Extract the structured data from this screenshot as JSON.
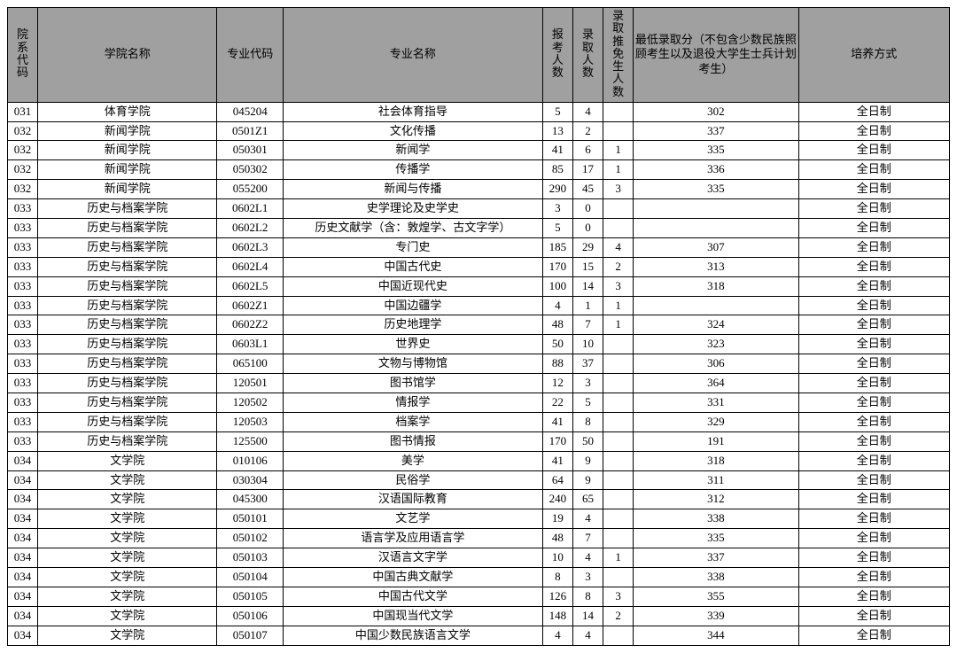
{
  "headers": {
    "dept_code": "院系代码",
    "dept_name": "学院名称",
    "major_code": "专业代码",
    "major_name": "专业名称",
    "applicants": "报考人数",
    "admitted": "录取人数",
    "exempt": "录取推免生人数",
    "min_score": "最低录取分（不包含少数民族照顾考生以及退役大学生士兵计划考生）",
    "mode": "培养方式"
  },
  "rows": [
    {
      "dept_code": "031",
      "dept_name": "体育学院",
      "major_code": "045204",
      "major_name": "社会体育指导",
      "applicants": "5",
      "admitted": "4",
      "exempt": "",
      "min_score": "302",
      "mode": "全日制"
    },
    {
      "dept_code": "032",
      "dept_name": "新闻学院",
      "major_code": "0501Z1",
      "major_name": "文化传播",
      "applicants": "13",
      "admitted": "2",
      "exempt": "",
      "min_score": "337",
      "mode": "全日制"
    },
    {
      "dept_code": "032",
      "dept_name": "新闻学院",
      "major_code": "050301",
      "major_name": "新闻学",
      "applicants": "41",
      "admitted": "6",
      "exempt": "1",
      "min_score": "335",
      "mode": "全日制"
    },
    {
      "dept_code": "032",
      "dept_name": "新闻学院",
      "major_code": "050302",
      "major_name": "传播学",
      "applicants": "85",
      "admitted": "17",
      "exempt": "1",
      "min_score": "336",
      "mode": "全日制"
    },
    {
      "dept_code": "032",
      "dept_name": "新闻学院",
      "major_code": "055200",
      "major_name": "新闻与传播",
      "applicants": "290",
      "admitted": "45",
      "exempt": "3",
      "min_score": "335",
      "mode": "全日制"
    },
    {
      "dept_code": "033",
      "dept_name": "历史与档案学院",
      "major_code": "0602L1",
      "major_name": "史学理论及史学史",
      "applicants": "3",
      "admitted": "0",
      "exempt": "",
      "min_score": "",
      "mode": "全日制"
    },
    {
      "dept_code": "033",
      "dept_name": "历史与档案学院",
      "major_code": "0602L2",
      "major_name": "历史文献学（含：敦煌学、古文字学）",
      "applicants": "5",
      "admitted": "0",
      "exempt": "",
      "min_score": "",
      "mode": "全日制"
    },
    {
      "dept_code": "033",
      "dept_name": "历史与档案学院",
      "major_code": "0602L3",
      "major_name": "专门史",
      "applicants": "185",
      "admitted": "29",
      "exempt": "4",
      "min_score": "307",
      "mode": "全日制"
    },
    {
      "dept_code": "033",
      "dept_name": "历史与档案学院",
      "major_code": "0602L4",
      "major_name": "中国古代史",
      "applicants": "170",
      "admitted": "15",
      "exempt": "2",
      "min_score": "313",
      "mode": "全日制"
    },
    {
      "dept_code": "033",
      "dept_name": "历史与档案学院",
      "major_code": "0602L5",
      "major_name": "中国近现代史",
      "applicants": "100",
      "admitted": "14",
      "exempt": "3",
      "min_score": "318",
      "mode": "全日制"
    },
    {
      "dept_code": "033",
      "dept_name": "历史与档案学院",
      "major_code": "0602Z1",
      "major_name": "中国边疆学",
      "applicants": "4",
      "admitted": "1",
      "exempt": "1",
      "min_score": "",
      "mode": "全日制"
    },
    {
      "dept_code": "033",
      "dept_name": "历史与档案学院",
      "major_code": "0602Z2",
      "major_name": "历史地理学",
      "applicants": "48",
      "admitted": "7",
      "exempt": "1",
      "min_score": "324",
      "mode": "全日制"
    },
    {
      "dept_code": "033",
      "dept_name": "历史与档案学院",
      "major_code": "0603L1",
      "major_name": "世界史",
      "applicants": "50",
      "admitted": "10",
      "exempt": "",
      "min_score": "323",
      "mode": "全日制"
    },
    {
      "dept_code": "033",
      "dept_name": "历史与档案学院",
      "major_code": "065100",
      "major_name": "文物与博物馆",
      "applicants": "88",
      "admitted": "37",
      "exempt": "",
      "min_score": "306",
      "mode": "全日制"
    },
    {
      "dept_code": "033",
      "dept_name": "历史与档案学院",
      "major_code": "120501",
      "major_name": "图书馆学",
      "applicants": "12",
      "admitted": "3",
      "exempt": "",
      "min_score": "364",
      "mode": "全日制"
    },
    {
      "dept_code": "033",
      "dept_name": "历史与档案学院",
      "major_code": "120502",
      "major_name": "情报学",
      "applicants": "22",
      "admitted": "5",
      "exempt": "",
      "min_score": "331",
      "mode": "全日制"
    },
    {
      "dept_code": "033",
      "dept_name": "历史与档案学院",
      "major_code": "120503",
      "major_name": "档案学",
      "applicants": "41",
      "admitted": "8",
      "exempt": "",
      "min_score": "329",
      "mode": "全日制"
    },
    {
      "dept_code": "033",
      "dept_name": "历史与档案学院",
      "major_code": "125500",
      "major_name": "图书情报",
      "applicants": "170",
      "admitted": "50",
      "exempt": "",
      "min_score": "191",
      "mode": "全日制"
    },
    {
      "dept_code": "034",
      "dept_name": "文学院",
      "major_code": "010106",
      "major_name": "美学",
      "applicants": "41",
      "admitted": "9",
      "exempt": "",
      "min_score": "318",
      "mode": "全日制"
    },
    {
      "dept_code": "034",
      "dept_name": "文学院",
      "major_code": "030304",
      "major_name": "民俗学",
      "applicants": "64",
      "admitted": "9",
      "exempt": "",
      "min_score": "311",
      "mode": "全日制"
    },
    {
      "dept_code": "034",
      "dept_name": "文学院",
      "major_code": "045300",
      "major_name": "汉语国际教育",
      "applicants": "240",
      "admitted": "65",
      "exempt": "",
      "min_score": "312",
      "mode": "全日制"
    },
    {
      "dept_code": "034",
      "dept_name": "文学院",
      "major_code": "050101",
      "major_name": "文艺学",
      "applicants": "19",
      "admitted": "4",
      "exempt": "",
      "min_score": "338",
      "mode": "全日制"
    },
    {
      "dept_code": "034",
      "dept_name": "文学院",
      "major_code": "050102",
      "major_name": "语言学及应用语言学",
      "applicants": "48",
      "admitted": "7",
      "exempt": "",
      "min_score": "335",
      "mode": "全日制"
    },
    {
      "dept_code": "034",
      "dept_name": "文学院",
      "major_code": "050103",
      "major_name": "汉语言文字学",
      "applicants": "10",
      "admitted": "4",
      "exempt": "1",
      "min_score": "337",
      "mode": "全日制"
    },
    {
      "dept_code": "034",
      "dept_name": "文学院",
      "major_code": "050104",
      "major_name": "中国古典文献学",
      "applicants": "8",
      "admitted": "3",
      "exempt": "",
      "min_score": "338",
      "mode": "全日制"
    },
    {
      "dept_code": "034",
      "dept_name": "文学院",
      "major_code": "050105",
      "major_name": "中国古代文学",
      "applicants": "126",
      "admitted": "8",
      "exempt": "3",
      "min_score": "355",
      "mode": "全日制"
    },
    {
      "dept_code": "034",
      "dept_name": "文学院",
      "major_code": "050106",
      "major_name": "中国现当代文学",
      "applicants": "148",
      "admitted": "14",
      "exempt": "2",
      "min_score": "339",
      "mode": "全日制"
    },
    {
      "dept_code": "034",
      "dept_name": "文学院",
      "major_code": "050107",
      "major_name": "中国少数民族语言文学",
      "applicants": "4",
      "admitted": "4",
      "exempt": "",
      "min_score": "344",
      "mode": "全日制"
    }
  ]
}
